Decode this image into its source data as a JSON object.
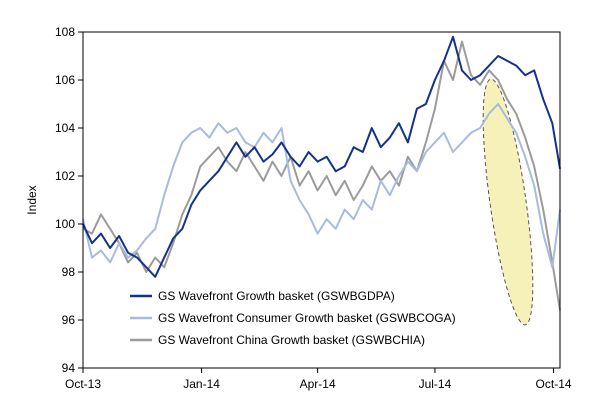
{
  "chart_data": {
    "type": "line",
    "title": "",
    "xlabel": "",
    "ylabel": "Index",
    "ylim": [
      94,
      108
    ],
    "yticks": [
      94,
      96,
      98,
      100,
      102,
      104,
      106,
      108
    ],
    "x_range": [
      "2013-10-01",
      "2014-10-06"
    ],
    "xticks": [
      {
        "date": "2013-10-01",
        "label": "Oct-13"
      },
      {
        "date": "2014-01-01",
        "label": "Jan-14"
      },
      {
        "date": "2014-04-01",
        "label": "Apr-14"
      },
      {
        "date": "2014-07-01",
        "label": "Jul-14"
      },
      {
        "date": "2014-10-01",
        "label": "Oct-14"
      }
    ],
    "grid": false,
    "legend_position": "bottom-left",
    "highlight": {
      "shape": "ellipse",
      "fill": "#f5f1b8",
      "style": "dashed",
      "region": "Sep-14 to Oct-14, 96 to 106"
    },
    "series": [
      {
        "name": "GS Wavefront Growth basket (GSWBGDPA)",
        "color": "#14328c",
        "points": [
          [
            "2013-10-01",
            100.0
          ],
          [
            "2013-10-08",
            99.2
          ],
          [
            "2013-10-15",
            99.6
          ],
          [
            "2013-10-22",
            99.0
          ],
          [
            "2013-10-29",
            99.5
          ],
          [
            "2013-11-05",
            98.8
          ],
          [
            "2013-11-12",
            98.6
          ],
          [
            "2013-11-19",
            98.2
          ],
          [
            "2013-11-26",
            97.8
          ],
          [
            "2013-12-03",
            98.6
          ],
          [
            "2013-12-10",
            99.4
          ],
          [
            "2013-12-17",
            99.8
          ],
          [
            "2013-12-24",
            100.8
          ],
          [
            "2013-12-31",
            101.4
          ],
          [
            "2014-01-07",
            101.8
          ],
          [
            "2014-01-14",
            102.2
          ],
          [
            "2014-01-21",
            102.8
          ],
          [
            "2014-01-28",
            103.4
          ],
          [
            "2014-02-04",
            102.8
          ],
          [
            "2014-02-11",
            103.2
          ],
          [
            "2014-02-18",
            102.6
          ],
          [
            "2014-02-25",
            102.9
          ],
          [
            "2014-03-04",
            103.4
          ],
          [
            "2014-03-11",
            102.8
          ],
          [
            "2014-03-18",
            102.4
          ],
          [
            "2014-03-25",
            103.0
          ],
          [
            "2014-04-01",
            102.6
          ],
          [
            "2014-04-08",
            102.8
          ],
          [
            "2014-04-15",
            102.2
          ],
          [
            "2014-04-22",
            102.4
          ],
          [
            "2014-04-29",
            103.2
          ],
          [
            "2014-05-06",
            103.0
          ],
          [
            "2014-05-13",
            104.0
          ],
          [
            "2014-05-20",
            103.2
          ],
          [
            "2014-05-27",
            103.6
          ],
          [
            "2014-06-03",
            104.2
          ],
          [
            "2014-06-10",
            103.4
          ],
          [
            "2014-06-17",
            104.8
          ],
          [
            "2014-06-24",
            105.0
          ],
          [
            "2014-07-01",
            106.0
          ],
          [
            "2014-07-08",
            106.8
          ],
          [
            "2014-07-15",
            107.8
          ],
          [
            "2014-07-22",
            106.4
          ],
          [
            "2014-07-29",
            106.0
          ],
          [
            "2014-08-05",
            106.2
          ],
          [
            "2014-08-12",
            106.6
          ],
          [
            "2014-08-19",
            107.0
          ],
          [
            "2014-08-26",
            106.8
          ],
          [
            "2014-09-02",
            106.6
          ],
          [
            "2014-09-09",
            106.2
          ],
          [
            "2014-09-16",
            106.4
          ],
          [
            "2014-09-23",
            105.2
          ],
          [
            "2014-09-30",
            104.2
          ],
          [
            "2014-10-06",
            102.3
          ]
        ]
      },
      {
        "name": "GS Wavefront Consumer Growth basket (GSWBCOGA)",
        "color": "#a8bbde",
        "points": [
          [
            "2013-10-01",
            100.2
          ],
          [
            "2013-10-08",
            98.6
          ],
          [
            "2013-10-15",
            98.9
          ],
          [
            "2013-10-22",
            98.4
          ],
          [
            "2013-10-29",
            99.2
          ],
          [
            "2013-11-05",
            98.6
          ],
          [
            "2013-11-12",
            98.9
          ],
          [
            "2013-11-19",
            99.4
          ],
          [
            "2013-11-26",
            99.8
          ],
          [
            "2013-12-03",
            101.2
          ],
          [
            "2013-12-10",
            102.4
          ],
          [
            "2013-12-17",
            103.4
          ],
          [
            "2013-12-24",
            103.8
          ],
          [
            "2013-12-31",
            104.0
          ],
          [
            "2014-01-07",
            103.6
          ],
          [
            "2014-01-14",
            104.2
          ],
          [
            "2014-01-21",
            103.8
          ],
          [
            "2014-01-28",
            104.0
          ],
          [
            "2014-02-04",
            103.4
          ],
          [
            "2014-02-11",
            103.2
          ],
          [
            "2014-02-18",
            103.8
          ],
          [
            "2014-02-25",
            103.4
          ],
          [
            "2014-03-04",
            104.0
          ],
          [
            "2014-03-11",
            101.8
          ],
          [
            "2014-03-18",
            101.0
          ],
          [
            "2014-03-25",
            100.4
          ],
          [
            "2014-04-01",
            99.6
          ],
          [
            "2014-04-08",
            100.2
          ],
          [
            "2014-04-15",
            99.8
          ],
          [
            "2014-04-22",
            100.6
          ],
          [
            "2014-04-29",
            100.2
          ],
          [
            "2014-05-06",
            101.0
          ],
          [
            "2014-05-13",
            100.6
          ],
          [
            "2014-05-20",
            101.8
          ],
          [
            "2014-05-27",
            101.2
          ],
          [
            "2014-06-03",
            102.0
          ],
          [
            "2014-06-10",
            102.6
          ],
          [
            "2014-06-17",
            102.2
          ],
          [
            "2014-06-24",
            103.0
          ],
          [
            "2014-07-01",
            103.4
          ],
          [
            "2014-07-08",
            103.8
          ],
          [
            "2014-07-15",
            103.0
          ],
          [
            "2014-07-22",
            103.4
          ],
          [
            "2014-07-29",
            103.8
          ],
          [
            "2014-08-05",
            104.0
          ],
          [
            "2014-08-12",
            104.6
          ],
          [
            "2014-08-19",
            105.0
          ],
          [
            "2014-08-26",
            104.4
          ],
          [
            "2014-09-02",
            103.8
          ],
          [
            "2014-09-09",
            102.8
          ],
          [
            "2014-09-16",
            101.6
          ],
          [
            "2014-09-23",
            99.6
          ],
          [
            "2014-09-30",
            98.2
          ],
          [
            "2014-10-06",
            100.6
          ]
        ]
      },
      {
        "name": "GS Wavefront China Growth basket (GSWBCHIA)",
        "color": "#9b9b9b",
        "points": [
          [
            "2013-10-01",
            99.8
          ],
          [
            "2013-10-08",
            99.6
          ],
          [
            "2013-10-15",
            100.4
          ],
          [
            "2013-10-22",
            99.8
          ],
          [
            "2013-10-29",
            99.2
          ],
          [
            "2013-11-05",
            98.4
          ],
          [
            "2013-11-12",
            98.8
          ],
          [
            "2013-11-19",
            98.0
          ],
          [
            "2013-11-26",
            98.6
          ],
          [
            "2013-12-03",
            98.2
          ],
          [
            "2013-12-10",
            99.2
          ],
          [
            "2013-12-17",
            100.4
          ],
          [
            "2013-12-24",
            101.2
          ],
          [
            "2013-12-31",
            102.4
          ],
          [
            "2014-01-07",
            102.8
          ],
          [
            "2014-01-14",
            103.2
          ],
          [
            "2014-01-21",
            102.6
          ],
          [
            "2014-01-28",
            102.2
          ],
          [
            "2014-02-04",
            103.0
          ],
          [
            "2014-02-11",
            102.4
          ],
          [
            "2014-02-18",
            101.8
          ],
          [
            "2014-02-25",
            102.6
          ],
          [
            "2014-03-04",
            102.0
          ],
          [
            "2014-03-11",
            102.8
          ],
          [
            "2014-03-18",
            101.6
          ],
          [
            "2014-03-25",
            102.2
          ],
          [
            "2014-04-01",
            101.4
          ],
          [
            "2014-04-08",
            102.0
          ],
          [
            "2014-04-15",
            101.2
          ],
          [
            "2014-04-22",
            101.8
          ],
          [
            "2014-04-29",
            101.0
          ],
          [
            "2014-05-06",
            101.6
          ],
          [
            "2014-05-13",
            102.4
          ],
          [
            "2014-05-20",
            101.8
          ],
          [
            "2014-05-27",
            102.2
          ],
          [
            "2014-06-03",
            101.6
          ],
          [
            "2014-06-10",
            102.8
          ],
          [
            "2014-06-17",
            102.2
          ],
          [
            "2014-06-24",
            103.4
          ],
          [
            "2014-07-01",
            104.8
          ],
          [
            "2014-07-08",
            106.8
          ],
          [
            "2014-07-15",
            106.0
          ],
          [
            "2014-07-22",
            107.6
          ],
          [
            "2014-07-29",
            106.2
          ],
          [
            "2014-08-05",
            105.8
          ],
          [
            "2014-08-12",
            106.4
          ],
          [
            "2014-08-19",
            106.0
          ],
          [
            "2014-08-26",
            105.2
          ],
          [
            "2014-09-02",
            104.6
          ],
          [
            "2014-09-09",
            103.6
          ],
          [
            "2014-09-16",
            102.4
          ],
          [
            "2014-09-23",
            100.6
          ],
          [
            "2014-09-30",
            98.4
          ],
          [
            "2014-10-06",
            96.4
          ]
        ]
      }
    ]
  }
}
